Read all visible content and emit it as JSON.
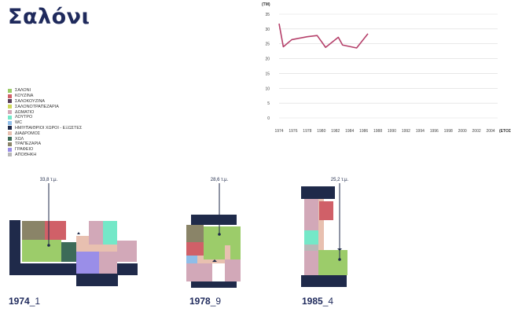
{
  "page": {
    "title": "Σαλόνι"
  },
  "legend": [
    {
      "label": "ΣΑΛΟΝΙ",
      "color": "#9ccc6a"
    },
    {
      "label": "ΚΟΥΖΙΝΑ",
      "color": "#d06068"
    },
    {
      "label": "ΣΑΛΟΚΟΥΖΙΝΑ",
      "color": "#5a3f5a"
    },
    {
      "label": "ΣΑΛΟΝΟΤΡΑΠΕΖΑΡΙΑ",
      "color": "#cfd85a"
    },
    {
      "label": "ΔΩΜΑΤΙΟ",
      "color": "#d2a8b8"
    },
    {
      "label": "ΛΟΥΤΡΟ",
      "color": "#74e8c8"
    },
    {
      "label": "WC",
      "color": "#8fbde8"
    },
    {
      "label": "ΗΜΙΥΠΑΙΘΡΙΟΙ ΧΩΡΟΙ - ΕΞΩΣΤΕΣ",
      "color": "#1f2a4a"
    },
    {
      "label": "ΔΙΑΔΡΟΜΟΣ",
      "color": "#e8c0b0"
    },
    {
      "label": "ΧΩΛ",
      "color": "#3d6b58"
    },
    {
      "label": "ΤΡΑΠΕΖΑΡΙΑ",
      "color": "#8a8468"
    },
    {
      "label": "ΓΡΑΦΕΙΟ",
      "color": "#9a8ee8"
    },
    {
      "label": "ΑΠΟΘΗΚΗ",
      "color": "#b8b8b8"
    }
  ],
  "chart_data": {
    "type": "line",
    "ylabel": "(ΤΜ)",
    "xlabel": "(ΕΤΟΣ",
    "ylim": [
      0,
      35
    ],
    "yticks": [
      0,
      5,
      10,
      15,
      20,
      25,
      30,
      35
    ],
    "xlim": [
      1974,
      2005
    ],
    "xticks": [
      1974,
      1976,
      1978,
      1980,
      1982,
      1984,
      1986,
      1988,
      1990,
      1992,
      1994,
      1996,
      1998,
      2000,
      2002,
      2004
    ],
    "grid": true,
    "series": [
      {
        "color": "#b5406a",
        "x": [
          1974,
          1974.6,
          1975.8,
          1978,
          1979.4,
          1980.6,
          1982.4,
          1983,
          1985,
          1986.6
        ],
        "y": [
          31.8,
          24,
          26.4,
          27.4,
          27.8,
          23.8,
          27.2,
          24.6,
          23.6,
          28.4
        ]
      }
    ]
  },
  "plans": [
    {
      "year": "1974",
      "suffix": "_1",
      "area": "33,8 τ.μ."
    },
    {
      "year": "1978",
      "suffix": "_9",
      "area": "28,6 τ.μ."
    },
    {
      "year": "1985",
      "suffix": "_4",
      "area": "25,2 τ.μ."
    }
  ]
}
